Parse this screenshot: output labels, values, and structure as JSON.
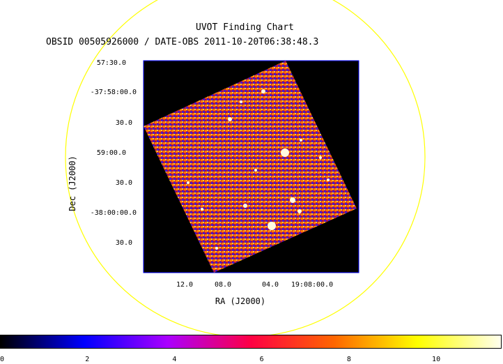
{
  "chart_data": {
    "type": "heatmap",
    "title": "UVOT Finding Chart",
    "subtitle": "OBSID 00505926000 / DATE-OBS 2011-10-20T06:38:48.3",
    "xlabel": "RA (J2000)",
    "ylabel": "Dec (J2000)",
    "x_ticks": [
      "12.0",
      "08.0",
      "04.0",
      "19:08:00.0"
    ],
    "y_ticks": [
      "57:30.0",
      "-37:58:00.0",
      "30.0",
      "59:00.0",
      "30.0",
      "-38:00:00.0",
      "30.0"
    ],
    "colorbar": {
      "ticks": [
        "0",
        "2",
        "4",
        "6",
        "8",
        "10"
      ],
      "range": [
        0,
        11.5
      ],
      "colormap": [
        "#000000",
        "#0000ff",
        "#aa00ff",
        "#ff0044",
        "#ff6600",
        "#ffff00",
        "#ffffee"
      ]
    },
    "colors": {
      "circle": "#ffff00",
      "frame": "#0000ff",
      "background": "#000000"
    }
  }
}
